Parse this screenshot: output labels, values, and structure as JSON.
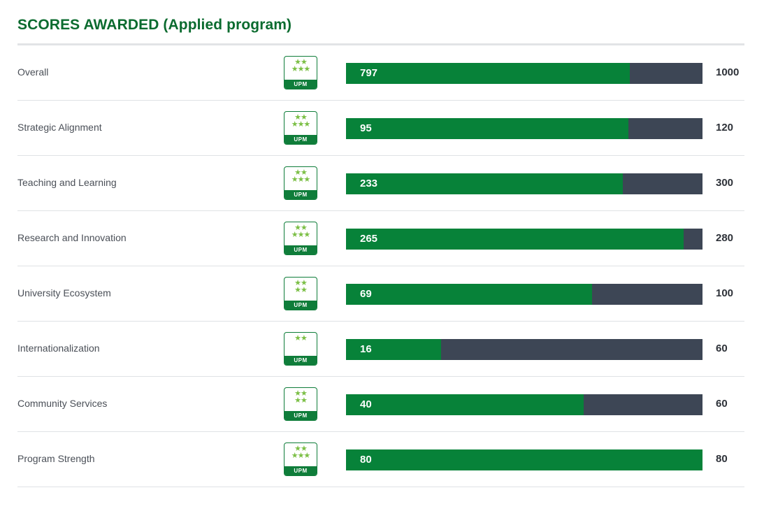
{
  "title": "SCORES AWARDED (Applied program)",
  "badge": {
    "text": "UPM",
    "star_color": "#7bbf45",
    "brand_color": "#0f7d3a"
  },
  "colors": {
    "title": "#0b6b2f",
    "fill": "#078239",
    "track": "#3d4655"
  },
  "chart_data": {
    "type": "bar",
    "orientation": "horizontal",
    "title": "SCORES AWARDED (Applied program)",
    "categories": [
      "Overall",
      "Strategic Alignment",
      "Teaching and Learning",
      "Research and Innovation",
      "University Ecosystem",
      "Internationalization",
      "Community Services",
      "Program Strength"
    ],
    "series": [
      {
        "values": [
          797,
          95,
          233,
          265,
          69,
          16,
          40,
          80
        ]
      }
    ],
    "max_values": [
      1000,
      120,
      300,
      280,
      100,
      60,
      60,
      80
    ],
    "stars": [
      5,
      5,
      5,
      5,
      4,
      2,
      4,
      5
    ]
  }
}
